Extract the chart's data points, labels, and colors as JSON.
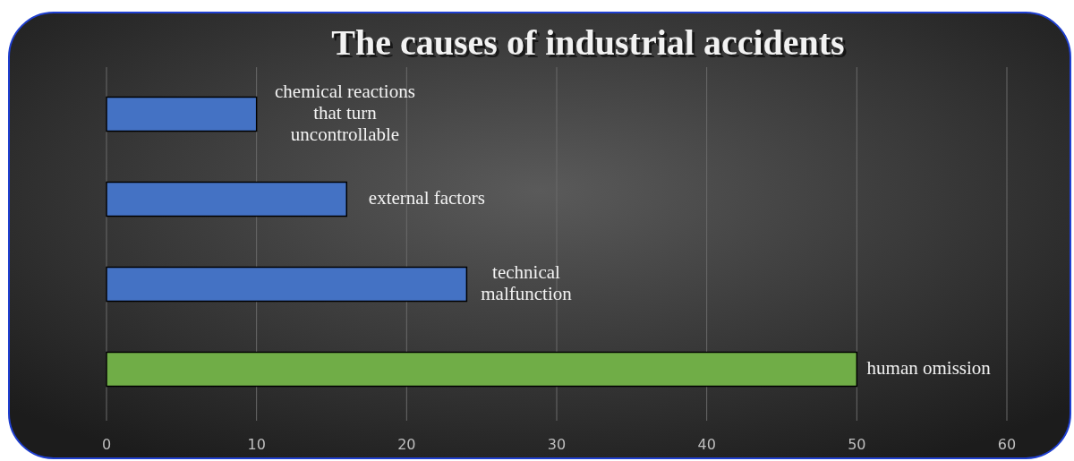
{
  "chart_data": {
    "type": "bar",
    "orientation": "horizontal",
    "title": "The causes of industrial accidents",
    "categories": [
      "chemical reactions that turn uncontrollable",
      "external factors",
      "technical malfunction",
      "human omission"
    ],
    "values": [
      10,
      16,
      24,
      50
    ],
    "colors": [
      "#4472c4",
      "#4472c4",
      "#4472c4",
      "#70ad47"
    ],
    "xlim": [
      0,
      60
    ],
    "xticks": [
      0,
      10,
      20,
      30,
      40,
      50,
      60
    ],
    "grid": "x"
  }
}
